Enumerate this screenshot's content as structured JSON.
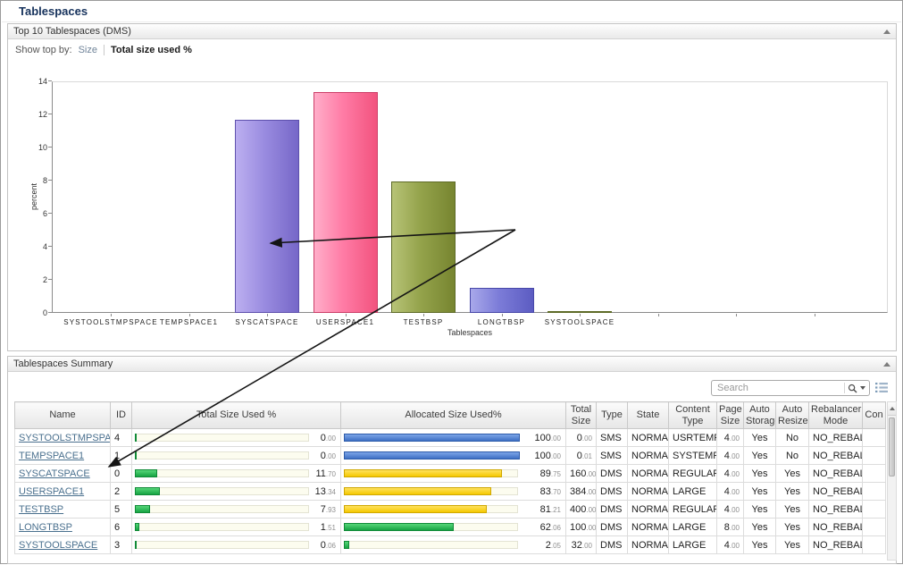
{
  "page": {
    "title": "Tablespaces"
  },
  "top_panel": {
    "title": "Top 10 Tablespaces (DMS)",
    "show_top_by_label": "Show top by:",
    "option_size": "Size",
    "option_total_used": "Total size used %"
  },
  "chart_data": {
    "type": "bar",
    "title": "Top 10 Tablespaces (DMS)",
    "xlabel": "Tablespaces",
    "ylabel": "percent",
    "ylim": [
      0,
      14
    ],
    "yticks": [
      0,
      2,
      4,
      6,
      8,
      10,
      12,
      14
    ],
    "grid": false,
    "categories": [
      "SYSTOOLSTMPSPACE",
      "TEMPSPACE1",
      "SYSCATSPACE",
      "USERSPACE1",
      "TESTBSP",
      "LONGTBSP",
      "SYSTOOLSPACE"
    ],
    "values": [
      0,
      0,
      11.7,
      13.34,
      7.93,
      1.51,
      0.06
    ],
    "bar_styles": [
      null,
      null,
      {
        "light": "#bcaff0",
        "mid": "#9a8ce0",
        "dark": "#7667c8",
        "border": "#5e50ad"
      },
      {
        "light": "#ffaec9",
        "mid": "#ff7ca6",
        "dark": "#f2537e",
        "border": "#cc3e68"
      },
      {
        "light": "#b7c377",
        "mid": "#94a34b",
        "dark": "#778530",
        "border": "#5e6b27"
      },
      {
        "light": "#a8a8ea",
        "mid": "#7c7cd8",
        "dark": "#5c5cc2",
        "border": "#4747a8"
      },
      {
        "light": "#b7c377",
        "mid": "#94a34b",
        "dark": "#778530",
        "border": "#5e6b27"
      }
    ]
  },
  "summary_panel": {
    "title": "Tablespaces Summary",
    "search": {
      "placeholder": "Search"
    },
    "table": {
      "columns": [
        {
          "key": "name",
          "label": "Name"
        },
        {
          "key": "id",
          "label": "ID"
        },
        {
          "key": "used_pct",
          "label": "Total Size Used %"
        },
        {
          "key": "alloc_pct",
          "label": "Allocated Size Used%"
        },
        {
          "key": "total_size",
          "label": "Total Size"
        },
        {
          "key": "type",
          "label": "Type"
        },
        {
          "key": "state",
          "label": "State"
        },
        {
          "key": "content_type",
          "label": "Content Type"
        },
        {
          "key": "page_size",
          "label": "Page Size"
        },
        {
          "key": "auto_storage",
          "label": "Auto Storage"
        },
        {
          "key": "auto_resize",
          "label": "Auto Resize"
        },
        {
          "key": "rebalancer_mode",
          "label": "Rebalancer Mode"
        },
        {
          "key": "con",
          "label": "Con"
        }
      ],
      "rows": [
        {
          "name": "SYSTOOLSTMPSPACE",
          "id": "4",
          "used_pct": "0.00",
          "alloc_pct": "100.00",
          "alloc_color": "blue",
          "total_size": "0.00",
          "type": "SMS",
          "state": "NORMAL",
          "content_type": "USRTEMP",
          "page_size": "4.00",
          "auto_storage": "Yes",
          "auto_resize": "No",
          "rebalancer_mode": "NO_REBAL",
          "con": ""
        },
        {
          "name": "TEMPSPACE1",
          "id": "1",
          "used_pct": "0.00",
          "alloc_pct": "100.00",
          "alloc_color": "blue",
          "total_size": "0.01",
          "type": "SMS",
          "state": "NORMAL",
          "content_type": "SYSTEMP",
          "page_size": "4.00",
          "auto_storage": "Yes",
          "auto_resize": "No",
          "rebalancer_mode": "NO_REBAL",
          "con": ""
        },
        {
          "name": "SYSCATSPACE",
          "id": "0",
          "used_pct": "11.70",
          "alloc_pct": "89.75",
          "alloc_color": "yellow",
          "total_size": "160.00",
          "type": "DMS",
          "state": "NORMAL",
          "content_type": "REGULAR",
          "page_size": "4.00",
          "auto_storage": "Yes",
          "auto_resize": "Yes",
          "rebalancer_mode": "NO_REBAL",
          "con": ""
        },
        {
          "name": "USERSPACE1",
          "id": "2",
          "used_pct": "13.34",
          "alloc_pct": "83.70",
          "alloc_color": "yellow",
          "total_size": "384.00",
          "type": "DMS",
          "state": "NORMAL",
          "content_type": "LARGE",
          "page_size": "4.00",
          "auto_storage": "Yes",
          "auto_resize": "Yes",
          "rebalancer_mode": "NO_REBAL",
          "con": ""
        },
        {
          "name": "TESTBSP",
          "id": "5",
          "used_pct": "7.93",
          "alloc_pct": "81.21",
          "alloc_color": "yellow",
          "total_size": "400.00",
          "type": "DMS",
          "state": "NORMAL",
          "content_type": "REGULAR",
          "page_size": "4.00",
          "auto_storage": "Yes",
          "auto_resize": "Yes",
          "rebalancer_mode": "NO_REBAL",
          "con": ""
        },
        {
          "name": "LONGTBSP",
          "id": "6",
          "used_pct": "1.51",
          "alloc_pct": "62.06",
          "alloc_color": "green",
          "total_size": "100.00",
          "type": "DMS",
          "state": "NORMAL",
          "content_type": "LARGE",
          "page_size": "8.00",
          "auto_storage": "Yes",
          "auto_resize": "Yes",
          "rebalancer_mode": "NO_REBAL",
          "con": ""
        },
        {
          "name": "SYSTOOLSPACE",
          "id": "3",
          "used_pct": "0.06",
          "alloc_pct": "2.05",
          "alloc_color": "green",
          "total_size": "32.00",
          "type": "DMS",
          "state": "NORMAL",
          "content_type": "LARGE",
          "page_size": "4.00",
          "auto_storage": "Yes",
          "auto_resize": "Yes",
          "rebalancer_mode": "NO_REBAL",
          "con": ""
        }
      ],
      "bar_palette": {
        "green": {
          "top": "#55d678",
          "bottom": "#17a343",
          "border": "#108a37"
        },
        "yellow": {
          "top": "#ffe25e",
          "bottom": "#f5c800",
          "border": "#cfa700"
        },
        "blue": {
          "top": "#7ba4e8",
          "bottom": "#3f70c4",
          "border": "#2d5ba9"
        }
      }
    }
  }
}
